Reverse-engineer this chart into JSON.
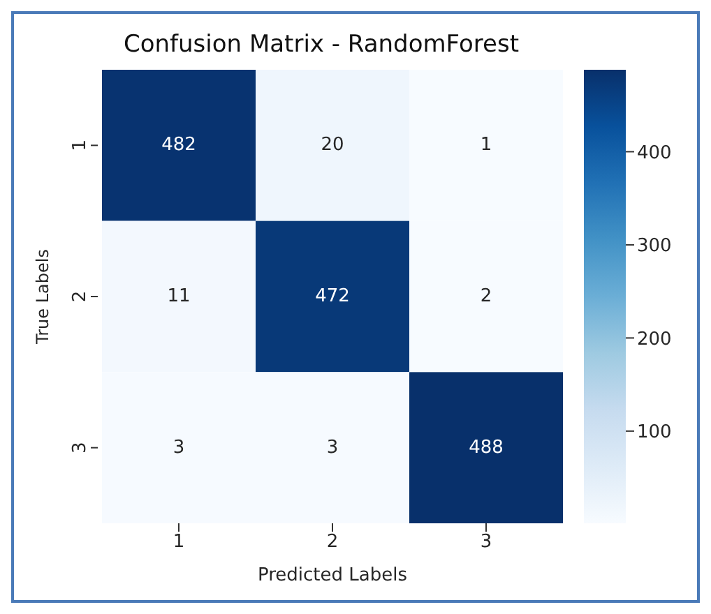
{
  "chart_data": {
    "type": "heatmap",
    "title": "Confusion Matrix - RandomForest",
    "xlabel": "Predicted Labels",
    "ylabel": "True Labels",
    "categories": [
      "1",
      "2",
      "3"
    ],
    "y_categories": [
      "1",
      "2",
      "3"
    ],
    "cells": [
      [
        482,
        20,
        1
      ],
      [
        11,
        472,
        2
      ],
      [
        3,
        3,
        488
      ]
    ],
    "clim": [
      1,
      488
    ],
    "cticks": [
      100,
      200,
      300,
      400
    ],
    "data_labels": true
  }
}
